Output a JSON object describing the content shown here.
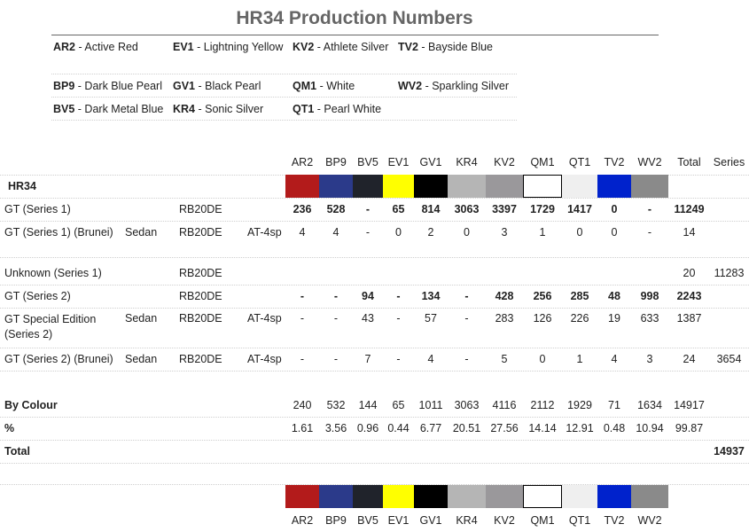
{
  "title": "HR34 Production Numbers",
  "legend": [
    {
      "code": "AR2",
      "name": "Active Red"
    },
    {
      "code": "EV1",
      "name": "Lightning Yellow"
    },
    {
      "code": "KV2",
      "name": "Athlete Silver"
    },
    {
      "code": "TV2",
      "name": "Bayside Blue"
    },
    {
      "code": "BP9",
      "name": "Dark Blue Pearl"
    },
    {
      "code": "GV1",
      "name": "Black Pearl"
    },
    {
      "code": "QM1",
      "name": "White"
    },
    {
      "code": "WV2",
      "name": "Sparkling Silver"
    },
    {
      "code": "BV5",
      "name": "Dark Metal Blue"
    },
    {
      "code": "KR4",
      "name": "Sonic Silver"
    },
    {
      "code": "QT1",
      "name": "Pearl White"
    }
  ],
  "columns": [
    "AR2",
    "BP9",
    "BV5",
    "EV1",
    "GV1",
    "KR4",
    "KV2",
    "QM1",
    "QT1",
    "TV2",
    "WV2",
    "Total",
    "Series"
  ],
  "colors": {
    "AR2": "#b31b1b",
    "BP9": "#2b3a8a",
    "BV5": "#20232b",
    "EV1": "#ffff00",
    "GV1": "#000000",
    "KR4": "#b5b5b5",
    "KV2": "#9a989b",
    "QM1": "#ffffff",
    "QT1": "#efefef",
    "TV2": "#0022cc",
    "WV2": "#8a8a8a"
  },
  "section_label": "HR34",
  "rows": [
    {
      "model": "GT (Series 1)",
      "body": "",
      "engine": "RB20DE",
      "trans": "",
      "bold": true,
      "values": [
        "236",
        "528",
        "-",
        "65",
        "814",
        "3063",
        "3397",
        "1729",
        "1417",
        "0",
        "-",
        "11249",
        ""
      ]
    },
    {
      "model": "GT (Series 1) (Brunei)",
      "body": "Sedan",
      "engine": "RB20DE",
      "trans": "AT-4sp",
      "bold": false,
      "values": [
        "4",
        "4",
        "-",
        "0",
        "2",
        "0",
        "3",
        "1",
        "0",
        "0",
        "-",
        "14",
        ""
      ]
    },
    {
      "model": "Unknown (Series 1)",
      "body": "",
      "engine": "RB20DE",
      "trans": "",
      "bold": false,
      "values": [
        "",
        "",
        "",
        "",
        "",
        "",
        "",
        "",
        "",
        "",
        "",
        "20",
        "11283"
      ]
    },
    {
      "model": "GT (Series 2)",
      "body": "",
      "engine": "RB20DE",
      "trans": "",
      "bold": true,
      "values": [
        "-",
        "-",
        "94",
        "-",
        "134",
        "-",
        "428",
        "256",
        "285",
        "48",
        "998",
        "2243",
        ""
      ]
    },
    {
      "model": "GT Special Edition (Series 2)",
      "body": "Sedan",
      "engine": "RB20DE",
      "trans": "AT-4sp",
      "bold": false,
      "values": [
        "-",
        "-",
        "43",
        "-",
        "57",
        "-",
        "283",
        "126",
        "226",
        "19",
        "633",
        "1387",
        ""
      ]
    },
    {
      "model": "GT (Series 2) (Brunei)",
      "body": "Sedan",
      "engine": "RB20DE",
      "trans": "AT-4sp",
      "bold": false,
      "values": [
        "-",
        "-",
        "7",
        "-",
        "4",
        "-",
        "5",
        "0",
        "1",
        "4",
        "3",
        "24",
        "3654"
      ]
    }
  ],
  "by_colour": {
    "label": "By Colour",
    "values": [
      "240",
      "532",
      "144",
      "65",
      "1011",
      "3063",
      "4116",
      "2112",
      "1929",
      "71",
      "1634",
      "14917",
      ""
    ]
  },
  "percent": {
    "label": "%",
    "values": [
      "1.61",
      "3.56",
      "0.96",
      "0.44",
      "6.77",
      "20.51",
      "27.56",
      "14.14",
      "12.91",
      "0.48",
      "10.94",
      "99.87",
      ""
    ]
  },
  "total": {
    "label": "Total",
    "value": "14937"
  }
}
